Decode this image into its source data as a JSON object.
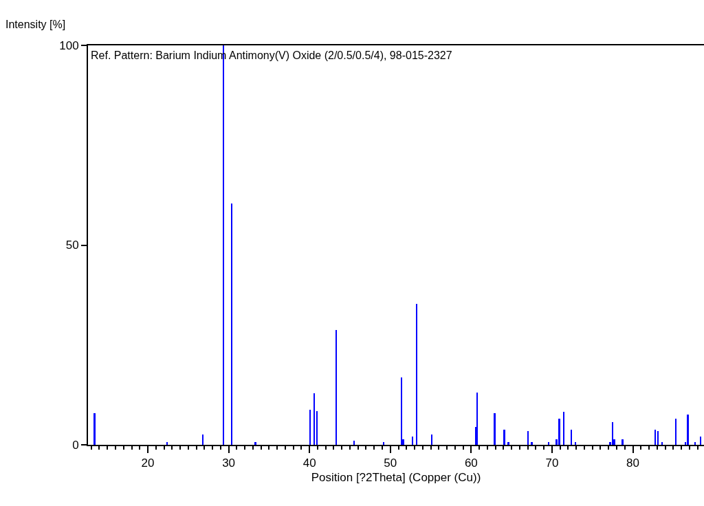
{
  "chart_data": {
    "type": "bar",
    "title": "Ref. Pattern: Barium Indium Antimony(V) Oxide (2/0.5/0.5/4), 98-015-2327",
    "xlabel": "Position [?2Theta] (Copper (Cu))",
    "ylabel": "Intensity [%]",
    "x": [
      13.4,
      22.4,
      26.8,
      29.35,
      30.36,
      33.3,
      40.05,
      40.56,
      40.9,
      43.27,
      45.5,
      49.2,
      51.4,
      51.6,
      52.76,
      53.27,
      55.1,
      60.6,
      60.73,
      62.9,
      64.1,
      64.6,
      67.0,
      67.5,
      69.6,
      70.56,
      70.9,
      71.44,
      72.4,
      72.9,
      77.2,
      77.5,
      77.7,
      78.73,
      82.76,
      83.1,
      83.6,
      85.3,
      86.5,
      86.8,
      87.7,
      88.4
    ],
    "values": [
      8.0,
      0.7,
      2.5,
      100,
      60.5,
      0.7,
      8.7,
      12.9,
      8.4,
      28.7,
      1.1,
      0.7,
      16.9,
      1.4,
      2.1,
      35.3,
      2.5,
      4.5,
      13.1,
      8.0,
      3.8,
      0.7,
      3.5,
      0.7,
      0.7,
      1.4,
      6.6,
      8.3,
      3.8,
      0.7,
      0.7,
      5.6,
      1.4,
      1.4,
      3.8,
      3.5,
      0.7,
      6.6,
      0.7,
      7.6,
      0.7,
      2.1
    ],
    "color": "#0000ff",
    "xlim": [
      12.6,
      88.8
    ],
    "xticks": [
      {
        "value": 13,
        "label": null
      },
      {
        "value": 14,
        "label": null
      },
      {
        "value": 15,
        "label": null
      },
      {
        "value": 16,
        "label": null
      },
      {
        "value": 17,
        "label": null
      },
      {
        "value": 18,
        "label": null
      },
      {
        "value": 19,
        "label": null
      },
      20,
      {
        "value": 21,
        "label": null
      },
      {
        "value": 22,
        "label": null
      },
      {
        "value": 23,
        "label": null
      },
      {
        "value": 24,
        "label": null
      },
      {
        "value": 25,
        "label": null
      },
      {
        "value": 26,
        "label": null
      },
      {
        "value": 27,
        "label": null
      },
      {
        "value": 28,
        "label": null
      },
      {
        "value": 29,
        "label": null
      },
      30,
      {
        "value": 31,
        "label": null
      },
      {
        "value": 32,
        "label": null
      },
      {
        "value": 33,
        "label": null
      },
      {
        "value": 34,
        "label": null
      },
      {
        "value": 35,
        "label": null
      },
      {
        "value": 36,
        "label": null
      },
      {
        "value": 37,
        "label": null
      },
      {
        "value": 38,
        "label": null
      },
      {
        "value": 39,
        "label": null
      },
      40,
      {
        "value": 41,
        "label": null
      },
      {
        "value": 42,
        "label": null
      },
      {
        "value": 43,
        "label": null
      },
      {
        "value": 44,
        "label": null
      },
      {
        "value": 45,
        "label": null
      },
      {
        "value": 46,
        "label": null
      },
      {
        "value": 47,
        "label": null
      },
      {
        "value": 48,
        "label": null
      },
      {
        "value": 49,
        "label": null
      },
      50,
      {
        "value": 51,
        "label": null
      },
      {
        "value": 52,
        "label": null
      },
      {
        "value": 53,
        "label": null
      },
      {
        "value": 54,
        "label": null
      },
      {
        "value": 55,
        "label": null
      },
      {
        "value": 56,
        "label": null
      },
      {
        "value": 57,
        "label": null
      },
      {
        "value": 58,
        "label": null
      },
      {
        "value": 59,
        "label": null
      },
      60,
      {
        "value": 61,
        "label": null
      },
      {
        "value": 62,
        "label": null
      },
      {
        "value": 63,
        "label": null
      },
      {
        "value": 64,
        "label": null
      },
      {
        "value": 65,
        "label": null
      },
      {
        "value": 66,
        "label": null
      },
      {
        "value": 67,
        "label": null
      },
      {
        "value": 68,
        "label": null
      },
      {
        "value": 69,
        "label": null
      },
      70,
      {
        "value": 71,
        "label": null
      },
      {
        "value": 72,
        "label": null
      },
      {
        "value": 73,
        "label": null
      },
      {
        "value": 74,
        "label": null
      },
      {
        "value": 75,
        "label": null
      },
      {
        "value": 76,
        "label": null
      },
      {
        "value": 77,
        "label": null
      },
      {
        "value": 78,
        "label": null
      },
      {
        "value": 79,
        "label": null
      },
      80,
      {
        "value": 81,
        "label": null
      },
      {
        "value": 82,
        "label": null
      },
      {
        "value": 83,
        "label": null
      },
      {
        "value": 84,
        "label": null
      },
      {
        "value": 85,
        "label": null
      },
      {
        "value": 86,
        "label": null
      },
      {
        "value": 87,
        "label": null
      },
      {
        "value": 88,
        "label": null
      }
    ],
    "ylim": [
      0,
      100
    ],
    "yticks": [
      0,
      50,
      100
    ],
    "grid": false
  }
}
